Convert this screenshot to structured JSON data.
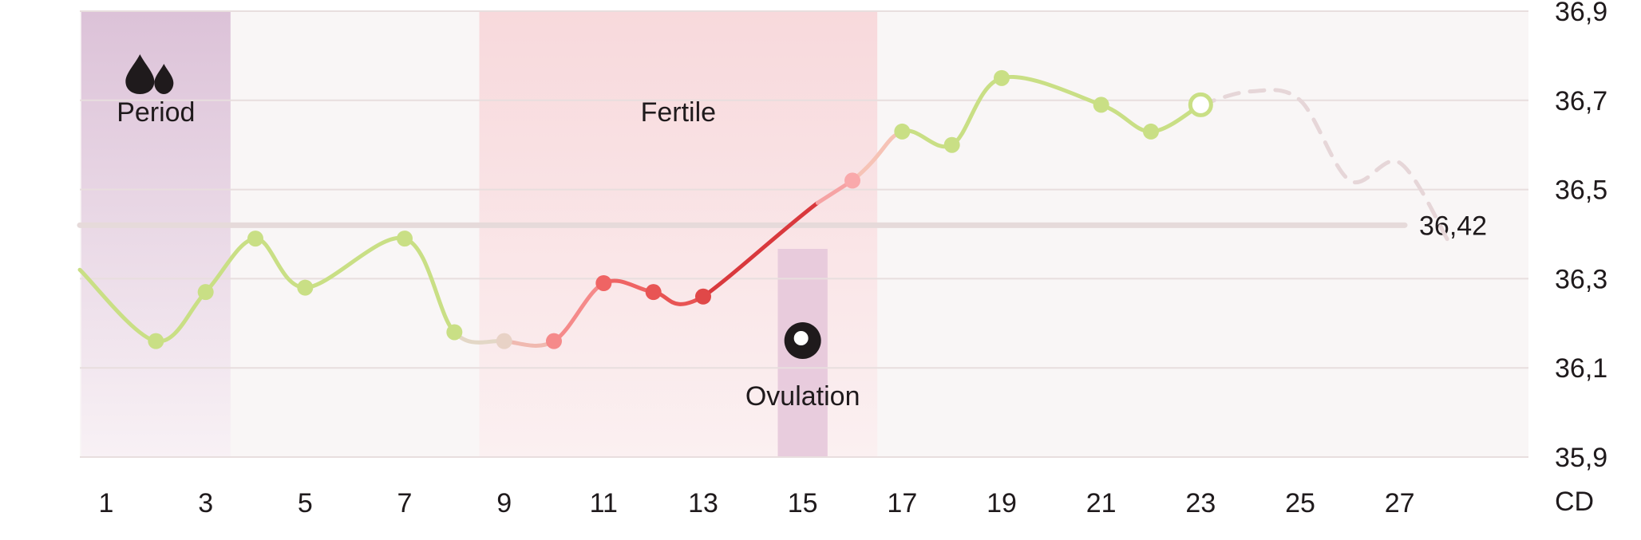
{
  "chart_data": {
    "type": "line",
    "x_unit_label": "CD",
    "x_tick_labels": [
      "1",
      "3",
      "5",
      "7",
      "9",
      "11",
      "13",
      "15",
      "17",
      "19",
      "21",
      "23",
      "25",
      "27"
    ],
    "y_tick_labels": [
      "36,9",
      "36,7",
      "36,5",
      "36,3",
      "36,1",
      "35,9"
    ],
    "ylim": [
      35.9,
      36.9
    ],
    "xlim": [
      0.5,
      28.5
    ],
    "grid": true,
    "zones": [
      {
        "name": "period",
        "label": "Period",
        "icon": "drops-icon",
        "start": 0.5,
        "end": 3.5,
        "color": "#d9bcd3"
      },
      {
        "name": "fertile",
        "label": "Fertile",
        "start": 8.5,
        "end": 16.5,
        "color": "#f9d9dc"
      },
      {
        "name": "ovulation",
        "label": "Ovulation",
        "icon": "egg-icon",
        "start": 14.5,
        "end": 15.5,
        "color": "#e6c8da"
      }
    ],
    "coverline": {
      "value": 36.42,
      "label": "36,42"
    },
    "series": [
      {
        "x": [
          2,
          3,
          4,
          5,
          7,
          8,
          9,
          10,
          11,
          12,
          13,
          16,
          17,
          18,
          19,
          21,
          22,
          23
        ],
        "y": [
          36.16,
          36.27,
          36.39,
          36.28,
          36.39,
          36.18,
          36.16,
          36.16,
          36.29,
          36.27,
          36.26,
          36.52,
          36.63,
          36.6,
          36.75,
          36.69,
          36.63,
          36.69
        ],
        "point_colors": [
          "#c9df85",
          "#c9df85",
          "#c9df85",
          "#c9df85",
          "#c9df85",
          "#c9df85",
          "#e8d2c6",
          "#f58a8a",
          "#ef6464",
          "#e85454",
          "#e04848",
          "#f9a9ab",
          "#c9df85",
          "#c9df85",
          "#c9df85",
          "#c9df85",
          "#c9df85",
          "#c9df85"
        ],
        "open_point_index": 17
      }
    ],
    "prediction": {
      "x": [
        23,
        24,
        25,
        26,
        27,
        28
      ],
      "y": [
        36.69,
        36.72,
        36.7,
        36.52,
        36.56,
        36.38
      ],
      "color": "#e6d6d8",
      "style": "dashed"
    },
    "colors": {
      "green": "#c9df85",
      "red": "#e04848",
      "pink": "#f9a9ab",
      "grid": "#e8dede",
      "background": "#f9f6f6"
    }
  }
}
